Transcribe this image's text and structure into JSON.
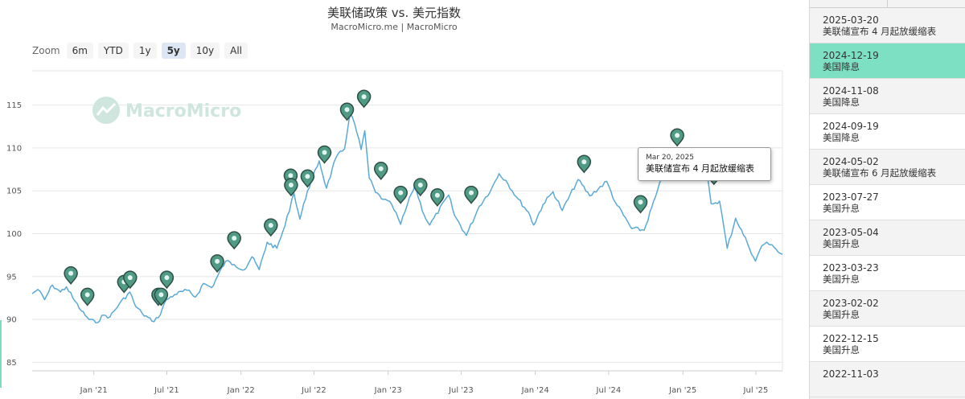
{
  "chart_data": {
    "type": "line",
    "title": "美联储政策 vs. 美元指数",
    "subtitle": "MacroMicro.me | MacroMicro",
    "watermark": "MacroMicro",
    "ylim": [
      84,
      119
    ],
    "y_ticks": [
      85,
      90,
      95,
      100,
      105,
      110,
      115
    ],
    "x_ticks": [
      {
        "date": "2021-01-01",
        "label": "Jan '21"
      },
      {
        "date": "2021-07-01",
        "label": "Jul '21"
      },
      {
        "date": "2022-01-01",
        "label": "Jan '22"
      },
      {
        "date": "2022-07-01",
        "label": "Jul '22"
      },
      {
        "date": "2023-01-01",
        "label": "Jan '23"
      },
      {
        "date": "2023-07-01",
        "label": "Jul '23"
      },
      {
        "date": "2024-01-01",
        "label": "Jan '24"
      },
      {
        "date": "2024-07-01",
        "label": "Jul '24"
      },
      {
        "date": "2025-01-01",
        "label": "Jan '25"
      },
      {
        "date": "2025-07-01",
        "label": "Jul '25"
      }
    ],
    "xlim": [
      "2020-08-01",
      "2025-09-05"
    ],
    "grid": true,
    "line_color": "#5aa9d6",
    "marker_color": "#4f9b86",
    "series": [
      {
        "points": [
          [
            "2020-08-01",
            93.0
          ],
          [
            "2020-08-15",
            93.5
          ],
          [
            "2020-09-01",
            92.3
          ],
          [
            "2020-09-20",
            94.0
          ],
          [
            "2020-10-10",
            93.2
          ],
          [
            "2020-10-25",
            93.8
          ],
          [
            "2020-11-10",
            92.5
          ],
          [
            "2020-12-01",
            91.0
          ],
          [
            "2020-12-20",
            90.0
          ],
          [
            "2021-01-06",
            89.6
          ],
          [
            "2021-01-25",
            90.5
          ],
          [
            "2021-02-10",
            90.3
          ],
          [
            "2021-03-05",
            91.8
          ],
          [
            "2021-03-31",
            93.2
          ],
          [
            "2021-04-15",
            91.5
          ],
          [
            "2021-05-01",
            90.7
          ],
          [
            "2021-05-25",
            89.8
          ],
          [
            "2021-06-10",
            90.2
          ],
          [
            "2021-06-30",
            92.3
          ],
          [
            "2021-07-20",
            92.9
          ],
          [
            "2021-08-20",
            93.4
          ],
          [
            "2021-09-10",
            92.6
          ],
          [
            "2021-09-30",
            94.2
          ],
          [
            "2021-10-20",
            93.7
          ],
          [
            "2021-11-24",
            96.8
          ],
          [
            "2021-12-15",
            96.4
          ],
          [
            "2022-01-10",
            95.8
          ],
          [
            "2022-01-28",
            97.3
          ],
          [
            "2022-02-15",
            95.8
          ],
          [
            "2022-03-07",
            99.0
          ],
          [
            "2022-03-31",
            98.3
          ],
          [
            "2022-04-20",
            100.9
          ],
          [
            "2022-05-12",
            104.8
          ],
          [
            "2022-05-27",
            101.7
          ],
          [
            "2022-06-15",
            105.0
          ],
          [
            "2022-07-14",
            108.5
          ],
          [
            "2022-08-01",
            105.3
          ],
          [
            "2022-08-25",
            108.9
          ],
          [
            "2022-09-15",
            109.9
          ],
          [
            "2022-09-28",
            114.1
          ],
          [
            "2022-10-10",
            112.8
          ],
          [
            "2022-10-26",
            109.8
          ],
          [
            "2022-11-04",
            112.0
          ],
          [
            "2022-11-15",
            106.5
          ],
          [
            "2022-12-01",
            104.8
          ],
          [
            "2022-12-20",
            104.0
          ],
          [
            "2023-01-10",
            103.4
          ],
          [
            "2023-02-01",
            101.1
          ],
          [
            "2023-02-28",
            104.7
          ],
          [
            "2023-03-08",
            105.6
          ],
          [
            "2023-03-31",
            102.2
          ],
          [
            "2023-04-14",
            101.0
          ],
          [
            "2023-05-31",
            104.5
          ],
          [
            "2023-06-15",
            102.1
          ],
          [
            "2023-07-14",
            99.8
          ],
          [
            "2023-08-15",
            103.2
          ],
          [
            "2023-09-15",
            105.3
          ],
          [
            "2023-10-03",
            107.0
          ],
          [
            "2023-10-20",
            106.2
          ],
          [
            "2023-11-15",
            104.3
          ],
          [
            "2023-12-15",
            102.5
          ],
          [
            "2023-12-28",
            101.0
          ],
          [
            "2024-01-20",
            103.4
          ],
          [
            "2024-02-14",
            104.9
          ],
          [
            "2024-03-08",
            102.7
          ],
          [
            "2024-04-16",
            106.3
          ],
          [
            "2024-05-15",
            104.4
          ],
          [
            "2024-06-26",
            106.1
          ],
          [
            "2024-07-17",
            103.7
          ],
          [
            "2024-08-27",
            100.6
          ],
          [
            "2024-09-27",
            100.4
          ],
          [
            "2024-10-25",
            104.3
          ],
          [
            "2024-11-22",
            108.1
          ],
          [
            "2024-12-20",
            108.4
          ],
          [
            "2025-01-13",
            110.0
          ],
          [
            "2025-02-05",
            107.6
          ],
          [
            "2025-02-28",
            107.5
          ],
          [
            "2025-03-12",
            103.5
          ],
          [
            "2025-04-02",
            103.8
          ],
          [
            "2025-04-21",
            98.3
          ],
          [
            "2025-05-12",
            101.8
          ],
          [
            "2025-06-10",
            98.9
          ],
          [
            "2025-06-30",
            96.8
          ],
          [
            "2025-07-16",
            98.6
          ],
          [
            "2025-07-28",
            99.0
          ],
          [
            "2025-08-05",
            98.7
          ],
          [
            "2025-08-20",
            98.2
          ],
          [
            "2025-09-05",
            97.6
          ]
        ]
      }
    ],
    "events": [
      {
        "date": "2020-11-05",
        "y": 95.0
      },
      {
        "date": "2020-12-16",
        "y": 92.5
      },
      {
        "date": "2021-03-17",
        "y": 94.0
      },
      {
        "date": "2021-04-01",
        "y": 94.5
      },
      {
        "date": "2021-06-10",
        "y": 92.5
      },
      {
        "date": "2021-06-17",
        "y": 92.5
      },
      {
        "date": "2021-07-01",
        "y": 94.5
      },
      {
        "date": "2021-11-03",
        "y": 96.4
      },
      {
        "date": "2021-12-15",
        "y": 99.1
      },
      {
        "date": "2022-03-16",
        "y": 100.6
      },
      {
        "date": "2022-05-04",
        "y": 106.4
      },
      {
        "date": "2022-05-05",
        "y": 105.3
      },
      {
        "date": "2022-06-15",
        "y": 106.3
      },
      {
        "date": "2022-07-27",
        "y": 109.1
      },
      {
        "date": "2022-09-21",
        "y": 114.1
      },
      {
        "date": "2022-11-02",
        "y": 115.6
      },
      {
        "date": "2022-12-14",
        "y": 107.2
      },
      {
        "date": "2023-02-01",
        "y": 104.4
      },
      {
        "date": "2023-03-22",
        "y": 105.3
      },
      {
        "date": "2023-05-03",
        "y": 104.1
      },
      {
        "date": "2023-07-26",
        "y": 104.4
      },
      {
        "date": "2024-05-01",
        "y": 108.0
      },
      {
        "date": "2024-09-18",
        "y": 103.3
      },
      {
        "date": "2024-11-07",
        "y": 107.6
      },
      {
        "date": "2024-12-18",
        "y": 111.1
      },
      {
        "date": "2025-03-19",
        "y": 106.6
      }
    ],
    "tooltip": {
      "date": "Mar 20, 2025",
      "text": "美联储宣布 4 月起放缓缩表"
    }
  },
  "zoom": {
    "label": "Zoom",
    "buttons": [
      {
        "label": "6m",
        "active": false
      },
      {
        "label": "YTD",
        "active": false
      },
      {
        "label": "1y",
        "active": false
      },
      {
        "label": "5y",
        "active": true
      },
      {
        "label": "10y",
        "active": false
      },
      {
        "label": "All",
        "active": false
      }
    ]
  },
  "side_panel": {
    "events": [
      {
        "date": "2025-03-20",
        "text": "美联储宣布 4 月起放缓缩表",
        "state": "normal"
      },
      {
        "date": "2024-12-19",
        "text": "美国降息",
        "state": "highlight"
      },
      {
        "date": "2024-11-08",
        "text": "美国降息",
        "state": "normal"
      },
      {
        "date": "2024-09-19",
        "text": "美国降息",
        "state": "white"
      },
      {
        "date": "2024-05-02",
        "text": "美联储宣布 6 月起放缓缩表",
        "state": "normal"
      },
      {
        "date": "2023-07-27",
        "text": "美国升息",
        "state": "white"
      },
      {
        "date": "2023-05-04",
        "text": "美国升息",
        "state": "normal"
      },
      {
        "date": "2023-03-23",
        "text": "美国升息",
        "state": "white"
      },
      {
        "date": "2023-02-02",
        "text": "美国升息",
        "state": "normal"
      },
      {
        "date": "2022-12-15",
        "text": "美国升息",
        "state": "white"
      },
      {
        "date": "2022-11-03",
        "text": "",
        "state": "normal"
      }
    ]
  }
}
